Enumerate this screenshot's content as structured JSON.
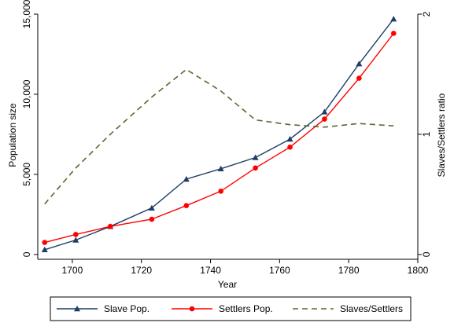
{
  "chart_data": {
    "type": "line",
    "xlabel": "Year",
    "ylabel_left": "Population size",
    "ylabel_right": "Slaves/Settlers ratio",
    "xlim": [
      1690,
      1800
    ],
    "ylim_left": [
      -300,
      15000
    ],
    "ylim_right": [
      -0.04,
      2
    ],
    "x_ticks": [
      1700,
      1720,
      1740,
      1760,
      1780,
      1800
    ],
    "y_left_ticks": [
      0,
      5000,
      10000,
      15000
    ],
    "y_left_tick_labels": [
      "0",
      "5,000",
      "10,000",
      "15,000"
    ],
    "y_right_ticks": [
      0,
      1,
      2
    ],
    "y_right_tick_labels": [
      "0",
      "1",
      "2"
    ],
    "grid": false,
    "legend_position": "bottom",
    "series": [
      {
        "name": "Slave Pop.",
        "axis": "left",
        "color": "#1f3e64",
        "marker": "triangle",
        "x": [
          1692,
          1701,
          1711,
          1723,
          1733,
          1743,
          1753,
          1763,
          1773,
          1783,
          1793
        ],
        "y": [
          300,
          900,
          1750,
          2900,
          4700,
          5350,
          6050,
          7200,
          8900,
          11900,
          14700
        ]
      },
      {
        "name": "Settlers Pop.",
        "axis": "left",
        "color": "#ff0000",
        "marker": "circle",
        "x": [
          1692,
          1701,
          1711,
          1723,
          1733,
          1743,
          1753,
          1763,
          1773,
          1783,
          1793
        ],
        "y": [
          750,
          1250,
          1750,
          2200,
          3050,
          3950,
          5400,
          6700,
          8450,
          11000,
          13800
        ]
      },
      {
        "name": "Slaves/Settlers",
        "axis": "right",
        "color": "#556b2f",
        "dash": "dash",
        "x": [
          1692,
          1701,
          1711,
          1723,
          1733,
          1743,
          1753,
          1763,
          1773,
          1783,
          1793
        ],
        "y": [
          0.42,
          0.72,
          1.0,
          1.31,
          1.54,
          1.36,
          1.12,
          1.08,
          1.06,
          1.09,
          1.07
        ]
      }
    ]
  }
}
